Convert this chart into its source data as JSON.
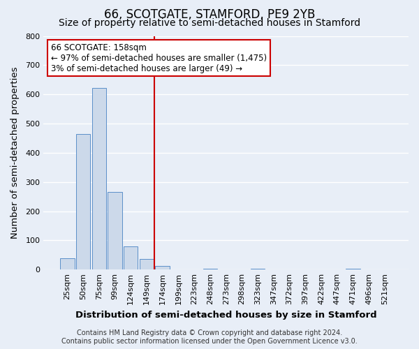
{
  "title": "66, SCOTGATE, STAMFORD, PE9 2YB",
  "subtitle": "Size of property relative to semi-detached houses in Stamford",
  "xlabel": "Distribution of semi-detached houses by size in Stamford",
  "ylabel": "Number of semi-detached properties",
  "footer_line1": "Contains HM Land Registry data © Crown copyright and database right 2024.",
  "footer_line2": "Contains public sector information licensed under the Open Government Licence v3.0.",
  "categories": [
    "25sqm",
    "50sqm",
    "75sqm",
    "99sqm",
    "124sqm",
    "149sqm",
    "174sqm",
    "199sqm",
    "223sqm",
    "248sqm",
    "273sqm",
    "298sqm",
    "323sqm",
    "347sqm",
    "372sqm",
    "397sqm",
    "422sqm",
    "447sqm",
    "471sqm",
    "496sqm",
    "521sqm"
  ],
  "values": [
    38,
    465,
    622,
    265,
    80,
    37,
    13,
    0,
    0,
    4,
    0,
    0,
    4,
    0,
    0,
    0,
    0,
    0,
    2,
    0,
    0
  ],
  "bar_color": "#ccd9ea",
  "bar_edge_color": "#5b8fc9",
  "vline_x": 5.5,
  "vline_color": "#cc0000",
  "ylim": [
    0,
    800
  ],
  "yticks": [
    0,
    100,
    200,
    300,
    400,
    500,
    600,
    700,
    800
  ],
  "annotation_title": "66 SCOTGATE: 158sqm",
  "annotation_line1": "← 97% of semi-detached houses are smaller (1,475)",
  "annotation_line2": "3% of semi-detached houses are larger (49) →",
  "background_color": "#e8eef7",
  "plot_background_color": "#e8eef7",
  "grid_color": "#ffffff",
  "title_fontsize": 12,
  "subtitle_fontsize": 10,
  "label_fontsize": 9.5,
  "tick_fontsize": 8,
  "footer_fontsize": 7
}
